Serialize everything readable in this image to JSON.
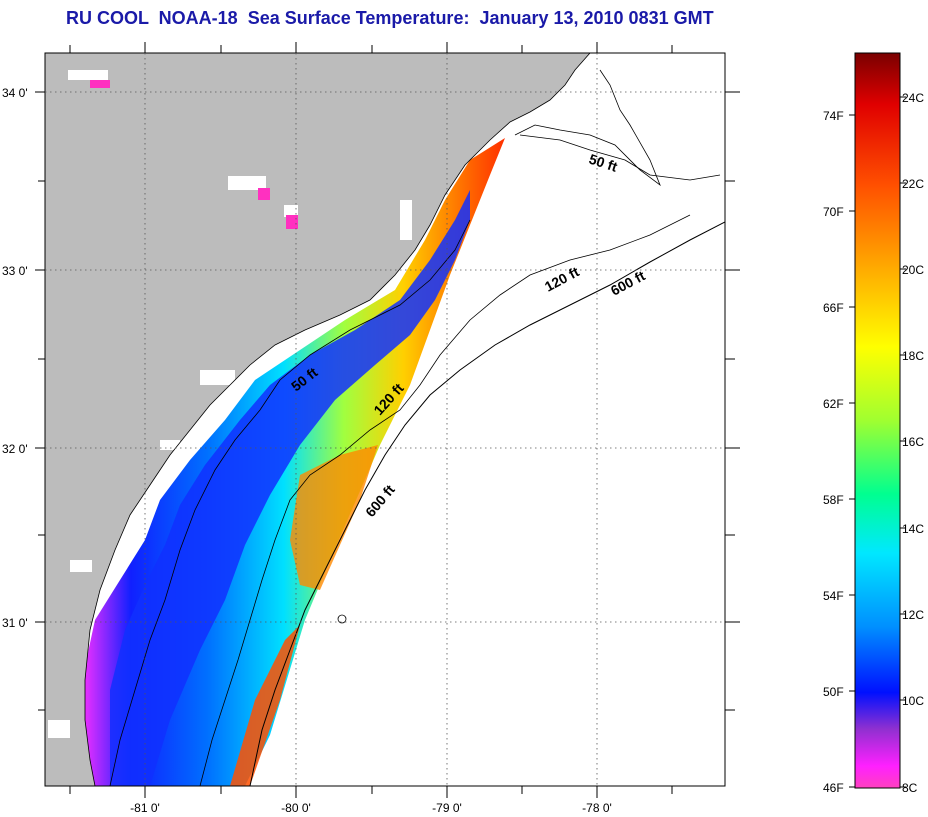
{
  "title": "RU COOL  NOAA-18  Sea Surface Temperature:  January 13, 2010 0831 GMT",
  "map": {
    "lat_labels": [
      "34 0'",
      "33 0'",
      "32 0'",
      "31 0'"
    ],
    "lon_labels": [
      "-81 0'",
      "-80 0'",
      "-79 0'",
      "-78 0'"
    ],
    "depth_contour_labels": [
      "50 ft",
      "120 ft",
      "600 ft",
      "50 ft",
      "120 ft",
      "600 ft"
    ],
    "colors": {
      "land": "#bcbcbc",
      "ocean_no_data": "#ffffff",
      "graticule": "#555555"
    }
  },
  "colorbar": {
    "fahrenheit_labels": [
      "74F",
      "70F",
      "66F",
      "62F",
      "58F",
      "54F",
      "50F",
      "46F"
    ],
    "celsius_labels": [
      "24C",
      "22C",
      "20C",
      "18C",
      "16C",
      "14C",
      "12C",
      "10C",
      "8C"
    ],
    "gradient_stops": [
      "#8b0000",
      "#ff0000",
      "#ff6a00",
      "#ffd200",
      "#ffff00",
      "#7cff00",
      "#00ffb4",
      "#00e0ff",
      "#0090ff",
      "#0010ff",
      "#8a30d8",
      "#ff20ff",
      "#ff40c0"
    ]
  }
}
